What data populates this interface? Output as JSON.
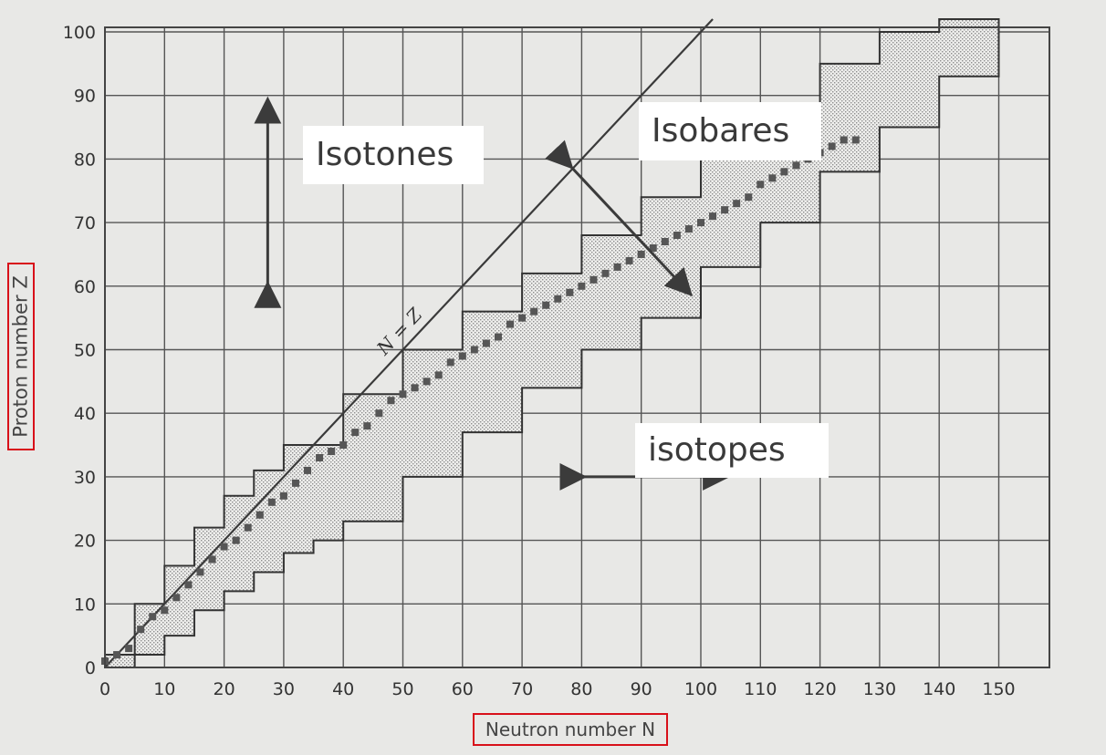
{
  "chart_data": {
    "type": "scatter",
    "title": "",
    "xlabel": "Neutron number N",
    "ylabel": "Proton number Z",
    "xlim": [
      0,
      155
    ],
    "ylim": [
      0,
      102
    ],
    "x_ticks": [
      0,
      10,
      20,
      30,
      40,
      50,
      60,
      70,
      80,
      90,
      100,
      110,
      120,
      130,
      140,
      150
    ],
    "y_ticks": [
      0,
      10,
      20,
      30,
      40,
      50,
      60,
      70,
      80,
      90,
      100
    ],
    "x_tick_labels": [
      "0",
      "10",
      "20",
      "30",
      "40",
      "50",
      "60",
      "70",
      "80",
      "90",
      "100",
      "110",
      "120",
      "130",
      "140",
      "150"
    ],
    "y_tick_labels": [
      "0",
      "10",
      "20",
      "30",
      "40",
      "50",
      "60",
      "70",
      "80",
      "90",
      "100"
    ],
    "grid": true,
    "reference_line": {
      "label": "N = Z",
      "slope": 1
    },
    "known_nuclides_band": {
      "upper": [
        [
          0,
          2
        ],
        [
          5,
          10
        ],
        [
          10,
          16
        ],
        [
          15,
          22
        ],
        [
          20,
          27
        ],
        [
          25,
          31
        ],
        [
          30,
          35
        ],
        [
          40,
          43
        ],
        [
          50,
          50
        ],
        [
          60,
          56
        ],
        [
          70,
          62
        ],
        [
          80,
          68
        ],
        [
          90,
          74
        ],
        [
          100,
          82
        ],
        [
          110,
          88
        ],
        [
          120,
          95
        ],
        [
          130,
          100
        ],
        [
          140,
          102
        ],
        [
          150,
          102
        ]
      ],
      "lower": [
        [
          0,
          0
        ],
        [
          5,
          2
        ],
        [
          10,
          5
        ],
        [
          15,
          9
        ],
        [
          20,
          12
        ],
        [
          25,
          15
        ],
        [
          30,
          18
        ],
        [
          35,
          20
        ],
        [
          40,
          23
        ],
        [
          50,
          30
        ],
        [
          60,
          37
        ],
        [
          70,
          44
        ],
        [
          80,
          50
        ],
        [
          90,
          55
        ],
        [
          100,
          63
        ],
        [
          110,
          70
        ],
        [
          120,
          78
        ],
        [
          130,
          85
        ],
        [
          140,
          93
        ],
        [
          150,
          98
        ]
      ]
    },
    "stable_nuclides": [
      [
        0,
        1
      ],
      [
        2,
        2
      ],
      [
        4,
        3
      ],
      [
        6,
        6
      ],
      [
        8,
        8
      ],
      [
        10,
        9
      ],
      [
        12,
        11
      ],
      [
        14,
        13
      ],
      [
        16,
        15
      ],
      [
        18,
        17
      ],
      [
        20,
        19
      ],
      [
        22,
        20
      ],
      [
        24,
        22
      ],
      [
        26,
        24
      ],
      [
        28,
        26
      ],
      [
        30,
        27
      ],
      [
        32,
        29
      ],
      [
        34,
        31
      ],
      [
        36,
        33
      ],
      [
        38,
        34
      ],
      [
        40,
        35
      ],
      [
        42,
        37
      ],
      [
        44,
        38
      ],
      [
        46,
        40
      ],
      [
        48,
        42
      ],
      [
        50,
        43
      ],
      [
        52,
        44
      ],
      [
        54,
        45
      ],
      [
        56,
        46
      ],
      [
        58,
        48
      ],
      [
        60,
        49
      ],
      [
        62,
        50
      ],
      [
        64,
        51
      ],
      [
        66,
        52
      ],
      [
        68,
        54
      ],
      [
        70,
        55
      ],
      [
        72,
        56
      ],
      [
        74,
        57
      ],
      [
        76,
        58
      ],
      [
        78,
        59
      ],
      [
        80,
        60
      ],
      [
        82,
        61
      ],
      [
        84,
        62
      ],
      [
        86,
        63
      ],
      [
        88,
        64
      ],
      [
        90,
        65
      ],
      [
        92,
        66
      ],
      [
        94,
        67
      ],
      [
        96,
        68
      ],
      [
        98,
        69
      ],
      [
        100,
        70
      ],
      [
        102,
        71
      ],
      [
        104,
        72
      ],
      [
        106,
        73
      ],
      [
        108,
        74
      ],
      [
        110,
        76
      ],
      [
        112,
        77
      ],
      [
        114,
        78
      ],
      [
        116,
        79
      ],
      [
        118,
        80
      ],
      [
        120,
        81
      ],
      [
        122,
        82
      ],
      [
        124,
        83
      ],
      [
        126,
        83
      ]
    ],
    "annotations": [
      {
        "text": "Isotones",
        "arrow": "vertical",
        "x": 12,
        "y_from": 60,
        "y_to": 89
      },
      {
        "text": "Isobares",
        "arrow": "diagonal",
        "from": [
          78,
          79
        ],
        "to": [
          98,
          59
        ]
      },
      {
        "text": "isotopes",
        "arrow": "horizontal",
        "y": 30,
        "x_from": 80,
        "x_to": 104
      }
    ]
  }
}
